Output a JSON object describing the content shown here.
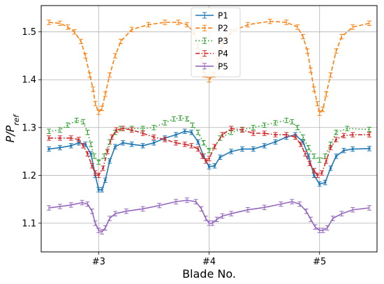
{
  "chart_data": {
    "type": "line",
    "xlabel": "Blade No.",
    "ylabel_main": "P/P",
    "ylabel_sub": "ref",
    "xlim": [
      2.48,
      5.52
    ],
    "ylim": [
      1.04,
      1.555
    ],
    "x_ticks": [
      {
        "value": 3,
        "label": "#3"
      },
      {
        "value": 4,
        "label": "#4"
      },
      {
        "value": 5,
        "label": "#5"
      }
    ],
    "y_ticks": [
      {
        "value": 1.1,
        "label": "1.1"
      },
      {
        "value": 1.2,
        "label": "1.2"
      },
      {
        "value": 1.3,
        "label": "1.3"
      },
      {
        "value": 1.4,
        "label": "1.4"
      },
      {
        "value": 1.5,
        "label": "1.5"
      }
    ],
    "grid": true,
    "legend_position": "upper-center",
    "series": [
      {
        "name": "P1",
        "color": "#1f77b4",
        "dash": "solid",
        "marker": "circle",
        "x": [
          2.55,
          2.65,
          2.75,
          2.82,
          2.88,
          2.93,
          2.97,
          3.0,
          3.03,
          3.06,
          3.1,
          3.15,
          3.22,
          3.3,
          3.4,
          3.5,
          3.6,
          3.7,
          3.78,
          3.84,
          3.9,
          3.95,
          4.0,
          4.05,
          4.1,
          4.2,
          4.3,
          4.4,
          4.5,
          4.6,
          4.7,
          4.78,
          4.85,
          4.9,
          4.95,
          5.0,
          5.05,
          5.1,
          5.15,
          5.22,
          5.3,
          5.45
        ],
        "y": [
          1.255,
          1.258,
          1.262,
          1.268,
          1.265,
          1.245,
          1.2,
          1.17,
          1.17,
          1.19,
          1.23,
          1.26,
          1.268,
          1.265,
          1.262,
          1.268,
          1.278,
          1.285,
          1.292,
          1.29,
          1.27,
          1.24,
          1.218,
          1.22,
          1.238,
          1.25,
          1.255,
          1.255,
          1.262,
          1.27,
          1.28,
          1.285,
          1.27,
          1.24,
          1.2,
          1.182,
          1.185,
          1.215,
          1.24,
          1.252,
          1.255,
          1.256
        ]
      },
      {
        "name": "P2",
        "color": "#ff7f0e",
        "dash": "dashed",
        "marker": "none",
        "x": [
          2.55,
          2.65,
          2.72,
          2.78,
          2.84,
          2.88,
          2.92,
          2.95,
          2.97,
          3.0,
          3.03,
          3.06,
          3.1,
          3.15,
          3.2,
          3.3,
          3.45,
          3.6,
          3.72,
          3.8,
          3.86,
          3.9,
          3.93,
          3.96,
          4.0,
          4.04,
          4.08,
          4.12,
          4.2,
          4.35,
          4.55,
          4.7,
          4.8,
          4.85,
          4.89,
          4.92,
          4.95,
          4.98,
          5.0,
          5.03,
          5.06,
          5.1,
          5.15,
          5.2,
          5.3,
          5.45
        ],
        "y": [
          1.52,
          1.518,
          1.51,
          1.5,
          1.48,
          1.45,
          1.41,
          1.38,
          1.35,
          1.332,
          1.34,
          1.37,
          1.41,
          1.45,
          1.48,
          1.505,
          1.515,
          1.52,
          1.52,
          1.515,
          1.5,
          1.47,
          1.44,
          1.41,
          1.4,
          1.41,
          1.44,
          1.475,
          1.5,
          1.515,
          1.522,
          1.52,
          1.51,
          1.49,
          1.46,
          1.42,
          1.38,
          1.35,
          1.33,
          1.338,
          1.37,
          1.41,
          1.46,
          1.49,
          1.51,
          1.518
        ]
      },
      {
        "name": "P3",
        "color": "#2ca02c",
        "dash": "dotted",
        "marker": "none",
        "x": [
          2.55,
          2.65,
          2.72,
          2.8,
          2.86,
          2.9,
          2.93,
          2.96,
          3.0,
          3.05,
          3.1,
          3.15,
          3.2,
          3.3,
          3.4,
          3.5,
          3.6,
          3.68,
          3.74,
          3.8,
          3.85,
          3.9,
          3.95,
          4.0,
          4.05,
          4.1,
          4.2,
          4.3,
          4.4,
          4.5,
          4.6,
          4.7,
          4.75,
          4.8,
          4.85,
          4.9,
          4.95,
          5.0,
          5.05,
          5.1,
          5.15,
          5.25,
          5.45
        ],
        "y": [
          1.292,
          1.295,
          1.305,
          1.315,
          1.312,
          1.29,
          1.265,
          1.24,
          1.228,
          1.24,
          1.27,
          1.29,
          1.298,
          1.298,
          1.298,
          1.3,
          1.31,
          1.318,
          1.32,
          1.318,
          1.305,
          1.29,
          1.268,
          1.252,
          1.26,
          1.278,
          1.29,
          1.296,
          1.3,
          1.305,
          1.31,
          1.315,
          1.312,
          1.3,
          1.28,
          1.258,
          1.24,
          1.232,
          1.24,
          1.265,
          1.29,
          1.298,
          1.296
        ]
      },
      {
        "name": "P4",
        "color": "#d62728",
        "dash": "dashdot",
        "marker": "diamond",
        "x": [
          2.55,
          2.65,
          2.75,
          2.82,
          2.86,
          2.9,
          2.94,
          2.97,
          3.0,
          3.04,
          3.08,
          3.12,
          3.16,
          3.22,
          3.3,
          3.4,
          3.5,
          3.6,
          3.7,
          3.78,
          3.84,
          3.9,
          3.94,
          3.97,
          4.0,
          4.05,
          4.12,
          4.2,
          4.3,
          4.4,
          4.5,
          4.6,
          4.7,
          4.78,
          4.83,
          4.87,
          4.91,
          4.95,
          4.98,
          5.02,
          5.06,
          5.1,
          5.15,
          5.22,
          5.3,
          5.45
        ],
        "y": [
          1.278,
          1.278,
          1.278,
          1.275,
          1.262,
          1.245,
          1.22,
          1.205,
          1.2,
          1.215,
          1.25,
          1.28,
          1.295,
          1.298,
          1.295,
          1.288,
          1.28,
          1.275,
          1.268,
          1.265,
          1.262,
          1.255,
          1.24,
          1.23,
          1.235,
          1.26,
          1.285,
          1.298,
          1.295,
          1.288,
          1.288,
          1.285,
          1.285,
          1.28,
          1.265,
          1.245,
          1.225,
          1.21,
          1.2,
          1.205,
          1.23,
          1.258,
          1.275,
          1.283,
          1.285,
          1.285
        ]
      },
      {
        "name": "P5",
        "color": "#9467bd",
        "dash": "solid",
        "marker": "none",
        "x": [
          2.55,
          2.65,
          2.75,
          2.85,
          2.9,
          2.94,
          2.97,
          3.0,
          3.03,
          3.06,
          3.1,
          3.15,
          3.25,
          3.4,
          3.55,
          3.7,
          3.8,
          3.88,
          3.93,
          3.97,
          4.0,
          4.03,
          4.07,
          4.12,
          4.2,
          4.35,
          4.5,
          4.65,
          4.75,
          4.82,
          4.88,
          4.92,
          4.96,
          5.0,
          5.03,
          5.07,
          5.12,
          5.2,
          5.3,
          5.45
        ],
        "y": [
          1.132,
          1.135,
          1.138,
          1.143,
          1.14,
          1.125,
          1.1,
          1.085,
          1.082,
          1.09,
          1.11,
          1.12,
          1.125,
          1.13,
          1.137,
          1.145,
          1.148,
          1.145,
          1.13,
          1.11,
          1.1,
          1.1,
          1.108,
          1.115,
          1.12,
          1.128,
          1.133,
          1.14,
          1.145,
          1.14,
          1.125,
          1.108,
          1.092,
          1.085,
          1.085,
          1.09,
          1.11,
          1.12,
          1.128,
          1.132
        ]
      }
    ]
  }
}
